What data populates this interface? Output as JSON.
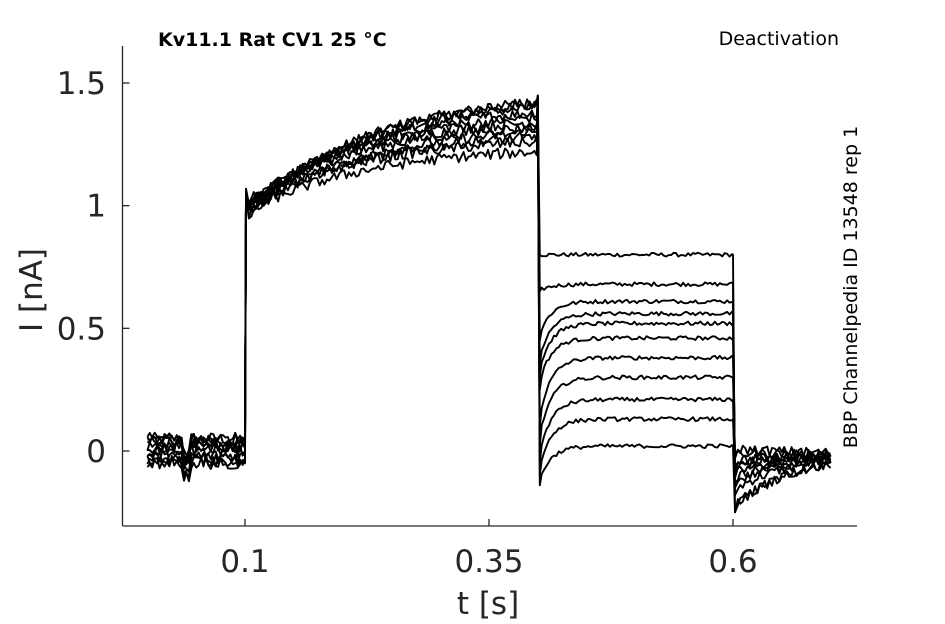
{
  "chart_data": {
    "type": "line",
    "title": "Kv11.1  Rat  CV1  25 °C",
    "subtitle": "Deactivation",
    "side_label": "BBP Channelpedia ID 13548 rep 1",
    "xlabel": "t [s]",
    "ylabel": "I [nA]",
    "xlim": [
      -0.1,
      0.65
    ],
    "ylim": [
      -0.3,
      1.65
    ],
    "x_ticks": [
      0.1,
      0.35,
      0.6
    ],
    "x_tick_labels": [
      "0.1",
      "0.35",
      "0.6"
    ],
    "y_ticks": [
      0,
      0.5,
      1,
      1.5
    ],
    "y_tick_labels": [
      "0",
      "0.5",
      "1",
      "1.5"
    ],
    "grid": false,
    "legend": "none",
    "protocol_times_s": {
      "start": 0.0,
      "step_on": 0.1,
      "step_to_tail": 0.4,
      "tail_off": 0.6,
      "end": 0.7
    },
    "prepulse_baseline_nA": [
      0.05,
      0.02,
      0.0,
      -0.03,
      -0.05,
      0.04,
      0.01,
      -0.02,
      -0.04,
      0.03
    ],
    "step_onset_nA": [
      0.95,
      0.97,
      0.98,
      0.99,
      1.0,
      1.01,
      0.96,
      0.98,
      1.0,
      0.97
    ],
    "step_end_nA": [
      1.42,
      1.4,
      1.38,
      1.36,
      1.34,
      1.32,
      1.3,
      1.28,
      1.26,
      1.22
    ],
    "tail_steady_nA": [
      0.8,
      0.68,
      0.61,
      0.56,
      0.52,
      0.46,
      0.38,
      0.3,
      0.21,
      0.13,
      0.02
    ],
    "tail_min_nA": [
      0.8,
      0.65,
      0.45,
      0.35,
      0.3,
      0.25,
      0.1,
      0.02,
      -0.05,
      -0.1,
      -0.14
    ],
    "post_baseline_nA": [
      -0.22,
      -0.15,
      -0.1,
      -0.08,
      -0.05,
      -0.03,
      0.0,
      0.02,
      -0.12,
      -0.06
    ],
    "colors": {
      "trace": "#000000",
      "axis": "#262626",
      "background": "#ffffff"
    }
  }
}
